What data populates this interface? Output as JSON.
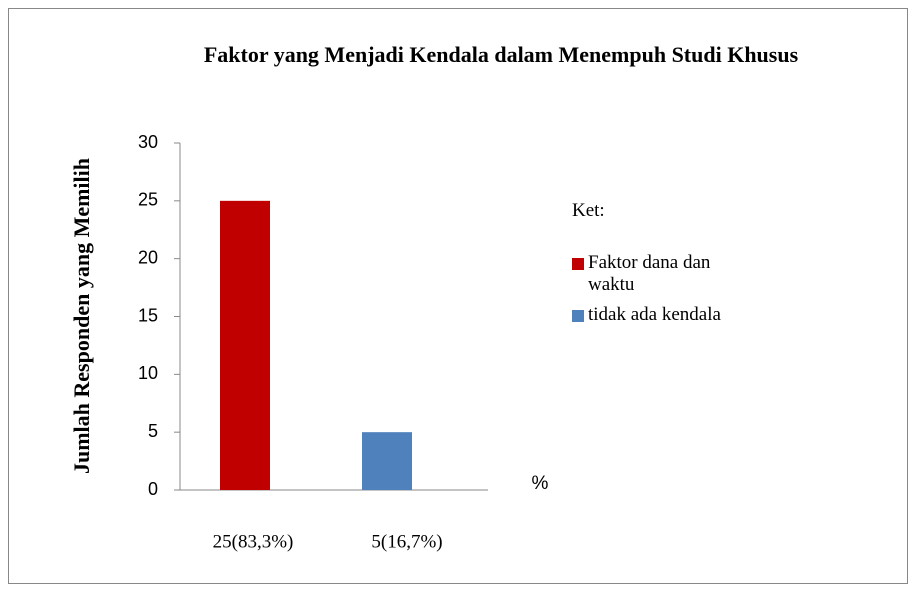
{
  "chart_data": {
    "type": "bar",
    "title": "Faktor yang Menjadi Kendala dalam Menempuh Studi Khusus",
    "ylabel": "Jumlah Responden yang Memilih",
    "xlabel": "%",
    "legend_title": "Ket:",
    "categories": [
      "25(83,3%)",
      "5(16,7%)"
    ],
    "series": [
      {
        "name": "Faktor dana dan waktu",
        "color": "#c00000",
        "values": [
          25,
          null
        ]
      },
      {
        "name": "tidak ada kendala",
        "color": "#4f81bd",
        "values": [
          null,
          5
        ]
      }
    ],
    "ylim": [
      0,
      30
    ],
    "yticks": [
      0,
      5,
      10,
      15,
      20,
      25,
      30
    ],
    "grid": false,
    "legend": "right"
  }
}
